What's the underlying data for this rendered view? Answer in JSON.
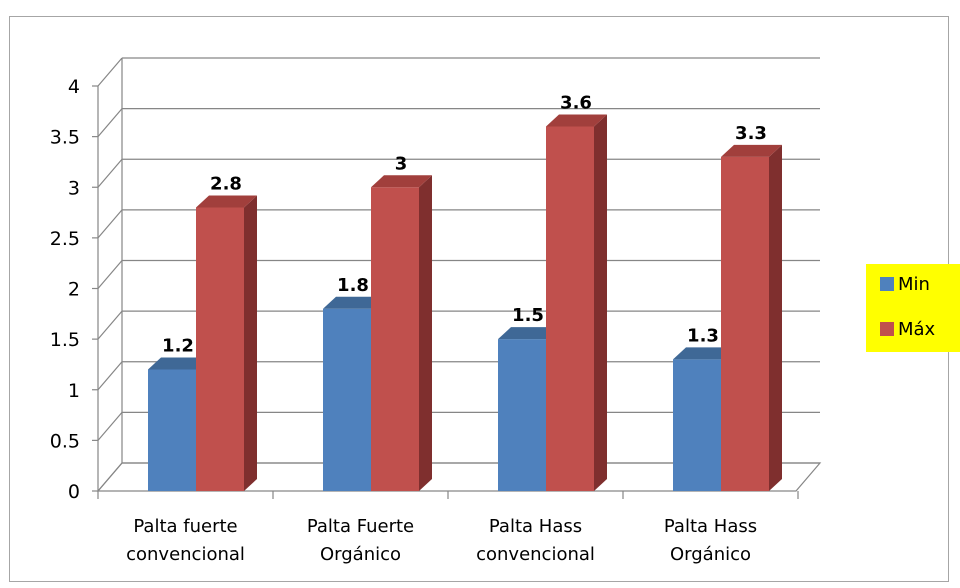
{
  "chart_data": {
    "type": "bar",
    "categories": [
      [
        "Palta fuerte",
        "convencional"
      ],
      [
        "Palta Fuerte",
        "Orgánico"
      ],
      [
        "Palta Hass",
        "convencional"
      ],
      [
        "Palta Hass",
        "Orgánico"
      ]
    ],
    "series": [
      {
        "name": "Min",
        "values": [
          1.2,
          1.8,
          1.5,
          1.3
        ],
        "color": "#4f81bd",
        "side": "#3a5f8c",
        "top": "#3f6896"
      },
      {
        "name": "Máx",
        "values": [
          2.8,
          3,
          3.6,
          3.3
        ],
        "color": "#c0504d",
        "side": "#7f2f2e",
        "top": "#a13f3c"
      }
    ],
    "data_labels": [
      [
        "1.2",
        "1.8",
        "1.5",
        "1.3"
      ],
      [
        "2.8",
        "3",
        "3.6",
        "3.3"
      ]
    ],
    "y_ticks": [
      "0",
      "0.5",
      "1",
      "1.5",
      "2",
      "2.5",
      "3",
      "3.5",
      "4"
    ],
    "ylim": [
      0,
      4
    ],
    "grid": true,
    "three_d": true,
    "legend": {
      "placement": "right",
      "background": "#ffff00"
    }
  }
}
